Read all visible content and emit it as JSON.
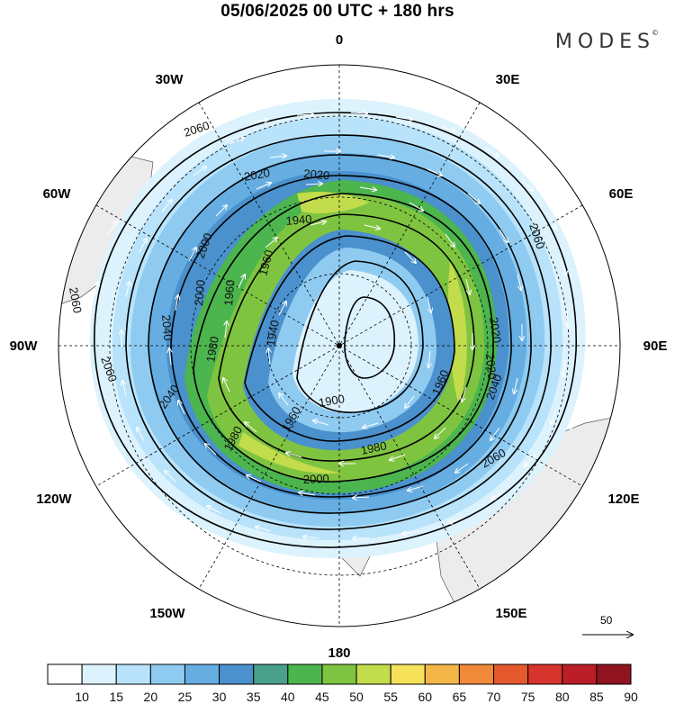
{
  "title": "05/06/2025  00 UTC  + 180 hrs",
  "logo": "MODES",
  "logo_mark": "©",
  "longitude_labels": {
    "lon_0": "0",
    "lon_30e": "30E",
    "lon_60e": "60E",
    "lon_90e": "90E",
    "lon_120e": "120E",
    "lon_150e": "150E",
    "lon_180": "180",
    "lon_150w": "150W",
    "lon_120w": "120W",
    "lon_90w": "90W",
    "lon_60w": "60W",
    "lon_30w": "30W"
  },
  "contour_labels": [
    "2060",
    "2020",
    "2020",
    "2060",
    "1940",
    "2000",
    "1960",
    "1960",
    "1960",
    "2040",
    "2000",
    "2060",
    "1940",
    "2020",
    "1980",
    "2040",
    "1900",
    "1960",
    "2060",
    "1980",
    "2020",
    "2000",
    "2060",
    "1960",
    "1980"
  ],
  "reference_vector": {
    "value": "50"
  },
  "colorbar": {
    "labels": [
      "10",
      "15",
      "20",
      "25",
      "30",
      "35",
      "40",
      "45",
      "50",
      "55",
      "60",
      "65",
      "70",
      "75",
      "80",
      "85",
      "90"
    ],
    "colors": [
      "#ffffff",
      "#dcf2fd",
      "#b8e3fa",
      "#8fcbf1",
      "#66aee2",
      "#4a91cd",
      "#4aa08a",
      "#4cb54e",
      "#7fc440",
      "#c2dc4c",
      "#f6e15b",
      "#f4b648",
      "#f08a3a",
      "#e5592e",
      "#d6342c",
      "#bb1e28",
      "#8f1420"
    ]
  }
}
